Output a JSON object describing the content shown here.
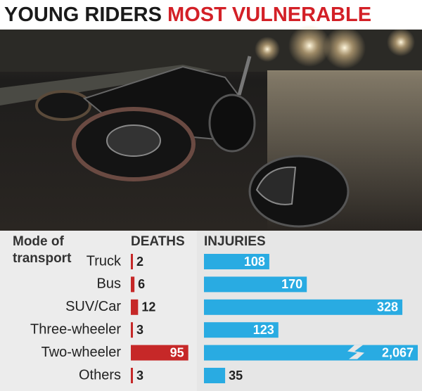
{
  "chart_data": {
    "type": "bar",
    "title": [
      "YOUNG RIDERS ",
      "MOST VULNERABLE"
    ],
    "category_header": [
      "Mode of",
      "transport"
    ],
    "categories": [
      "Truck",
      "Bus",
      "SUV/Car",
      "Three-wheeler",
      "Two-wheeler",
      "Others"
    ],
    "series": [
      {
        "name": "DEATHS",
        "color": "#c62828",
        "values": [
          2,
          6,
          12,
          3,
          95,
          3
        ]
      },
      {
        "name": "INJURIES",
        "color": "#29abe2",
        "values": [
          108,
          170,
          328,
          123,
          2067,
          35
        ],
        "value_labels": [
          "108",
          "170",
          "328",
          "123",
          "2,067",
          "35"
        ]
      }
    ]
  }
}
